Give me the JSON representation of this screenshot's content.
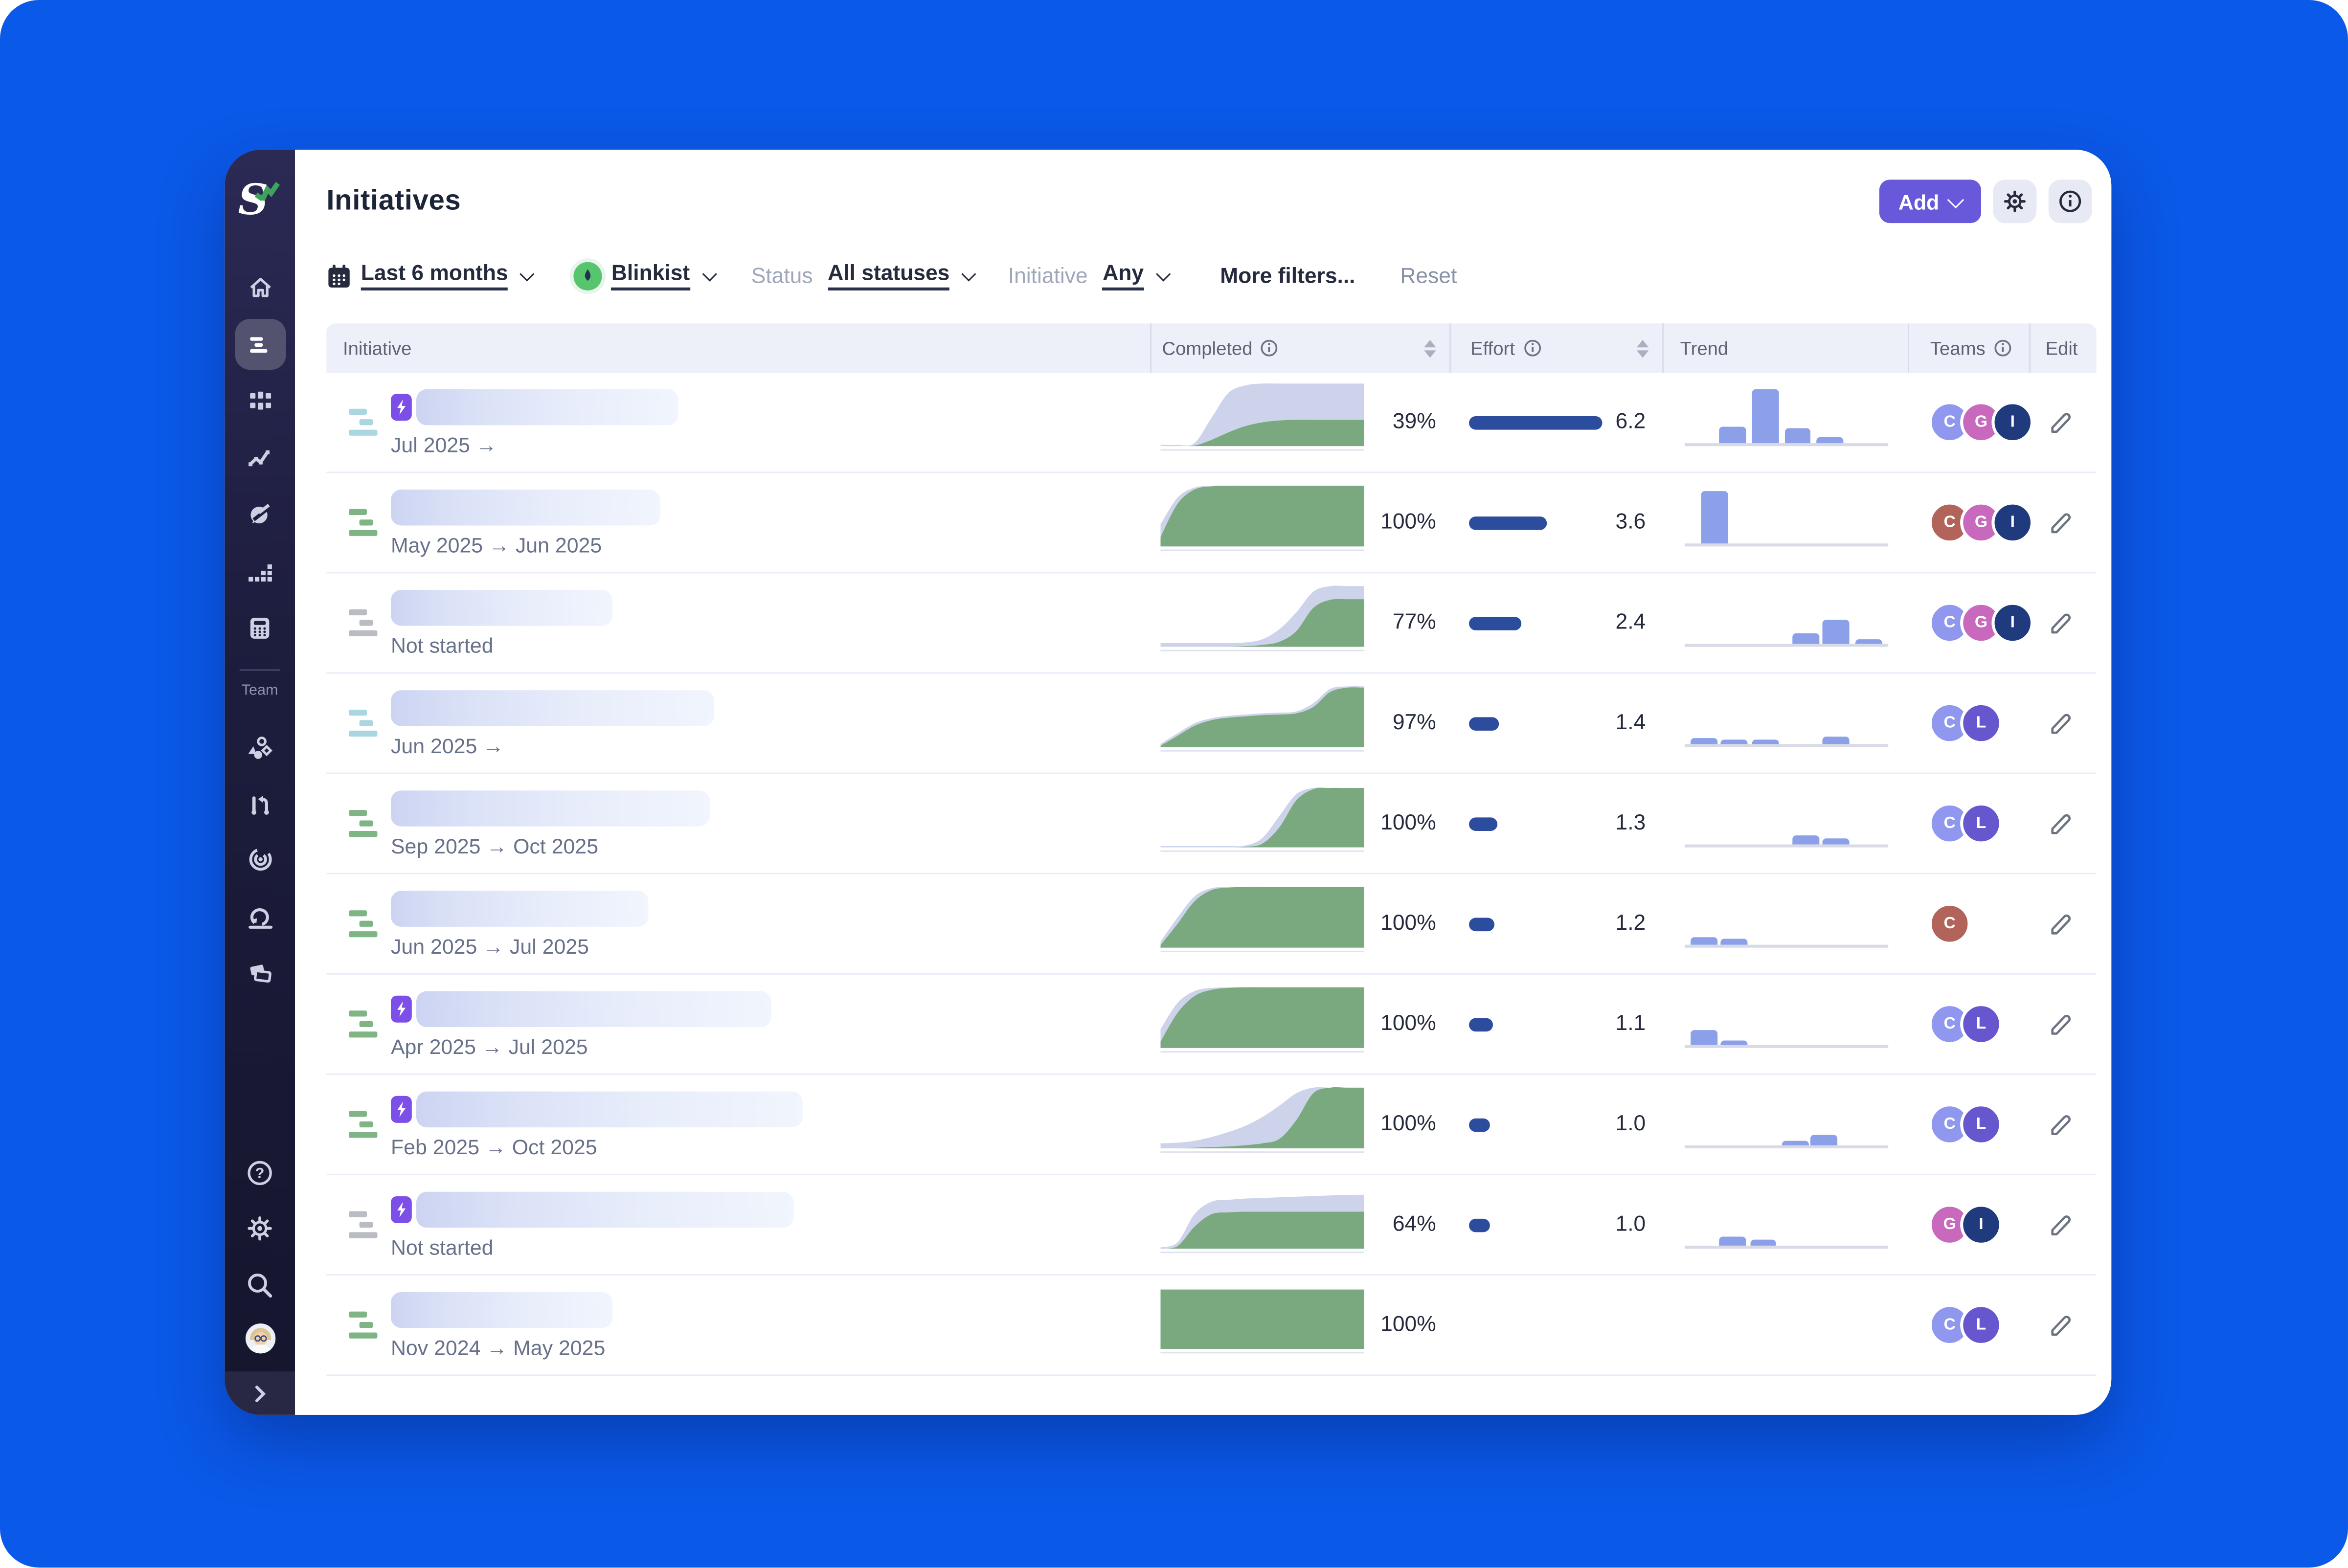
{
  "header": {
    "title": "Initiatives",
    "add_label": "Add"
  },
  "sidebar": {
    "team_label": "Team"
  },
  "filters": {
    "date_range": "Last 6 months",
    "workspace": "Blinkist",
    "status_label": "Status",
    "status_value": "All statuses",
    "initiative_label": "Initiative",
    "initiative_value": "Any",
    "more_filters": "More filters...",
    "reset": "Reset"
  },
  "table": {
    "effort_max": 6.2,
    "columns": {
      "initiative": "Initiative",
      "completed": "Completed",
      "effort": "Effort",
      "trend": "Trend",
      "teams": "Teams",
      "edit": "Edit"
    },
    "rows": [
      {
        "badge": true,
        "icon": "blue",
        "name_width": 175,
        "dates": "Jul 2025 →",
        "completed": "39%",
        "scope_series": [
          0.02,
          0.02,
          0.05,
          0.45,
          0.85,
          0.97,
          1,
          1,
          1,
          1,
          1,
          1,
          1
        ],
        "completed_series": [
          0,
          0,
          0.01,
          0.1,
          0.22,
          0.32,
          0.38,
          0.41,
          0.42,
          0.42,
          0.42,
          0.42,
          0.42
        ],
        "effort": 6.2,
        "effort_text": "6.2",
        "trend_bars": [
          {
            "l": 17,
            "w": 13,
            "h": 30
          },
          {
            "l": 33,
            "w": 13,
            "h": 100
          },
          {
            "l": 49,
            "w": 13,
            "h": 26
          },
          {
            "l": 65,
            "w": 13,
            "h": 11
          }
        ],
        "teams": [
          {
            "letter": "C",
            "color": "#8f97ef"
          },
          {
            "letter": "G",
            "color": "#c869bd"
          },
          {
            "letter": "I",
            "color": "#1f3a7d"
          }
        ]
      },
      {
        "badge": false,
        "icon": "green",
        "name_width": 180,
        "dates": "May 2025 → Jun 2025",
        "completed": "100%",
        "scope_series": [
          0.35,
          0.78,
          0.94,
          0.97,
          0.97,
          0.97,
          0.97,
          0.97,
          0.97,
          0.97,
          0.97,
          0.97,
          0.97
        ],
        "completed_series": [
          0.15,
          0.68,
          0.91,
          0.96,
          0.97,
          0.97,
          0.97,
          0.97,
          0.97,
          0.97,
          0.97,
          0.97,
          0.97
        ],
        "effort": 3.6,
        "effort_text": "3.6",
        "trend_bars": [
          {
            "l": 8,
            "w": 13,
            "h": 95
          }
        ],
        "teams": [
          {
            "letter": "C",
            "color": "#b2635a"
          },
          {
            "letter": "G",
            "color": "#c869bd"
          },
          {
            "letter": "I",
            "color": "#1f3a7d"
          }
        ]
      },
      {
        "badge": false,
        "icon": "gray",
        "name_width": 148,
        "dates": "Not started",
        "completed": "77%",
        "scope_series": [
          0.06,
          0.06,
          0.06,
          0.06,
          0.06,
          0.07,
          0.12,
          0.28,
          0.55,
          0.88,
          0.97,
          0.97,
          0.97
        ],
        "completed_series": [
          0,
          0,
          0,
          0,
          0,
          0.01,
          0.03,
          0.08,
          0.25,
          0.62,
          0.75,
          0.76,
          0.76
        ],
        "effort": 2.4,
        "effort_text": "2.4",
        "trend_bars": [
          {
            "l": 53,
            "w": 13,
            "h": 18
          },
          {
            "l": 68,
            "w": 13,
            "h": 42
          },
          {
            "l": 84,
            "w": 13,
            "h": 4
          }
        ],
        "teams": [
          {
            "letter": "C",
            "color": "#8f97ef"
          },
          {
            "letter": "G",
            "color": "#c869bd"
          },
          {
            "letter": "I",
            "color": "#1f3a7d"
          }
        ]
      },
      {
        "badge": false,
        "icon": "blue",
        "name_width": 216,
        "dates": "Jun 2025 →",
        "completed": "97%",
        "scope_series": [
          0.05,
          0.22,
          0.38,
          0.46,
          0.5,
          0.52,
          0.54,
          0.55,
          0.57,
          0.7,
          0.93,
          0.97,
          0.97
        ],
        "completed_series": [
          0.02,
          0.18,
          0.34,
          0.43,
          0.47,
          0.49,
          0.51,
          0.52,
          0.54,
          0.64,
          0.88,
          0.95,
          0.95
        ],
        "effort": 1.4,
        "effort_text": "1.4",
        "trend_bars": [
          {
            "l": 3,
            "w": 13,
            "h": 10
          },
          {
            "l": 18,
            "w": 13,
            "h": 8
          },
          {
            "l": 33,
            "w": 13,
            "h": 6
          },
          {
            "l": 68,
            "w": 13,
            "h": 12
          }
        ],
        "teams": [
          {
            "letter": "C",
            "color": "#8f97ef"
          },
          {
            "letter": "L",
            "color": "#6757ce"
          }
        ]
      },
      {
        "badge": false,
        "icon": "green",
        "name_width": 213,
        "dates": "Sep 2025 → Oct 2025",
        "completed": "100%",
        "scope_series": [
          0.02,
          0.02,
          0.02,
          0.02,
          0.02,
          0.03,
          0.15,
          0.5,
          0.85,
          0.95,
          0.95,
          0.95,
          0.95
        ],
        "completed_series": [
          0,
          0,
          0,
          0,
          0,
          0.01,
          0.06,
          0.32,
          0.75,
          0.93,
          0.95,
          0.95,
          0.95
        ],
        "effort": 1.3,
        "effort_text": "1.3",
        "trend_bars": [
          {
            "l": 53,
            "w": 13,
            "h": 16
          },
          {
            "l": 68,
            "w": 13,
            "h": 10
          }
        ],
        "teams": [
          {
            "letter": "C",
            "color": "#8f97ef"
          },
          {
            "letter": "L",
            "color": "#6757ce"
          }
        ]
      },
      {
        "badge": false,
        "icon": "green",
        "name_width": 172,
        "dates": "Jun 2025 → Jul 2025",
        "completed": "100%",
        "scope_series": [
          0.1,
          0.48,
          0.82,
          0.95,
          0.97,
          0.97,
          0.97,
          0.97,
          0.97,
          0.97,
          0.97,
          0.97,
          0.97
        ],
        "completed_series": [
          0.04,
          0.38,
          0.74,
          0.92,
          0.96,
          0.97,
          0.97,
          0.97,
          0.97,
          0.97,
          0.97,
          0.97,
          0.97
        ],
        "effort": 1.2,
        "effort_text": "1.2",
        "trend_bars": [
          {
            "l": 3,
            "w": 13,
            "h": 13
          },
          {
            "l": 18,
            "w": 13,
            "h": 11
          }
        ],
        "teams": [
          {
            "letter": "C",
            "color": "#b2635a"
          }
        ]
      },
      {
        "badge": true,
        "icon": "green",
        "name_width": 237,
        "dates": "Apr 2025 → Jul 2025",
        "completed": "100%",
        "scope_series": [
          0.3,
          0.72,
          0.91,
          0.96,
          0.97,
          0.97,
          0.97,
          0.97,
          0.97,
          0.97,
          0.97,
          0.97,
          0.97
        ],
        "completed_series": [
          0.1,
          0.56,
          0.83,
          0.93,
          0.96,
          0.97,
          0.97,
          0.97,
          0.97,
          0.97,
          0.97,
          0.97,
          0.97
        ],
        "effort": 1.1,
        "effort_text": "1.1",
        "trend_bars": [
          {
            "l": 3,
            "w": 13,
            "h": 26
          },
          {
            "l": 18,
            "w": 13,
            "h": 6
          }
        ],
        "teams": [
          {
            "letter": "C",
            "color": "#8f97ef"
          },
          {
            "letter": "L",
            "color": "#6757ce"
          }
        ]
      },
      {
        "badge": true,
        "icon": "green",
        "name_width": 258,
        "dates": "Feb 2025 → Oct 2025",
        "completed": "100%",
        "scope_series": [
          0.08,
          0.09,
          0.12,
          0.18,
          0.26,
          0.36,
          0.5,
          0.68,
          0.88,
          0.97,
          0.97,
          0.97,
          0.97
        ],
        "completed_series": [
          0,
          0,
          0.01,
          0.02,
          0.03,
          0.05,
          0.08,
          0.15,
          0.45,
          0.88,
          0.97,
          0.97,
          0.97
        ],
        "effort": 1.0,
        "effort_text": "1.0",
        "trend_bars": [
          {
            "l": 48,
            "w": 13,
            "h": 8
          },
          {
            "l": 62,
            "w": 13,
            "h": 18
          }
        ],
        "teams": [
          {
            "letter": "C",
            "color": "#8f97ef"
          },
          {
            "letter": "L",
            "color": "#6757ce"
          }
        ]
      },
      {
        "badge": true,
        "icon": "gray",
        "name_width": 252,
        "dates": "Not started",
        "completed": "64%",
        "scope_series": [
          0.02,
          0.1,
          0.55,
          0.75,
          0.78,
          0.8,
          0.81,
          0.82,
          0.83,
          0.84,
          0.85,
          0.86,
          0.86
        ],
        "completed_series": [
          0,
          0.04,
          0.35,
          0.55,
          0.58,
          0.59,
          0.59,
          0.59,
          0.59,
          0.59,
          0.59,
          0.59,
          0.59
        ],
        "effort": 1.0,
        "effort_text": "1.0",
        "trend_bars": [
          {
            "l": 17,
            "w": 13,
            "h": 14
          },
          {
            "l": 32,
            "w": 13,
            "h": 10
          }
        ],
        "teams": [
          {
            "letter": "G",
            "color": "#c869bd"
          },
          {
            "letter": "I",
            "color": "#1f3a7d"
          }
        ]
      },
      {
        "badge": false,
        "icon": "green",
        "name_width": 148,
        "dates": "Nov 2024 → May 2025",
        "completed": "100%",
        "scope_series": [
          0.95,
          0.95,
          0.95,
          0.95,
          0.95,
          0.95,
          0.95,
          0.95,
          0.95,
          0.95,
          0.95,
          0.95,
          0.95
        ],
        "completed_series": [
          0.95,
          0.95,
          0.95,
          0.95,
          0.95,
          0.95,
          0.95,
          0.95,
          0.95,
          0.95,
          0.95,
          0.95,
          0.95
        ],
        "effort": null,
        "effort_text": "",
        "trend_bars": [],
        "teams": [
          {
            "letter": "C",
            "color": "#8f97ef"
          },
          {
            "letter": "L",
            "color": "#6757ce"
          }
        ]
      }
    ]
  },
  "colors": {
    "canvas_blue": "#0b59e8",
    "sidebar_bg": "#1d1d3e",
    "accent_purple": "#6759d9",
    "badge_purple": "#7c4fe8",
    "chart_green": "#7ba97f",
    "chart_lavender": "#ccd3ea",
    "effort_navy": "#2c4d9e",
    "trend_periwinkle": "#8ca0ea",
    "row_icon": {
      "green": "#7fb585",
      "blue": "#a9d6e0",
      "gray": "#b9bcc2"
    }
  }
}
